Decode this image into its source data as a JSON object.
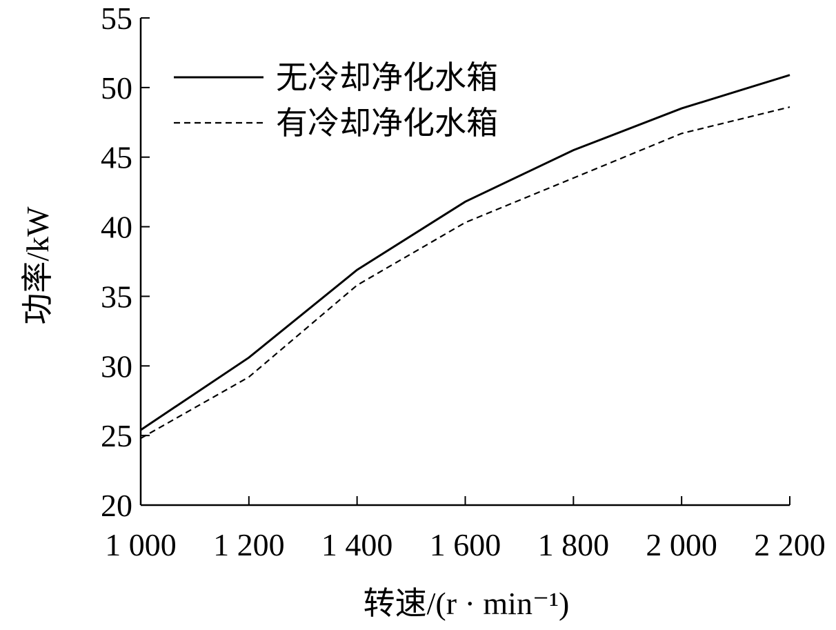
{
  "chart_data": {
    "type": "line",
    "xlabel": "转速/(r · min⁻¹)",
    "ylabel": "功率/kW",
    "x": [
      1000,
      1200,
      1400,
      1600,
      1800,
      2000,
      2200
    ],
    "xtick_labels": [
      "1 000",
      "1 200",
      "1 400",
      "1 600",
      "1 800",
      "2 000",
      "2 200"
    ],
    "yticks": [
      20,
      25,
      30,
      35,
      40,
      45,
      50,
      55
    ],
    "xlim": [
      1000,
      2200
    ],
    "ylim": [
      20,
      55
    ],
    "grid": false,
    "legend_position": "top-left",
    "series": [
      {
        "name": "无冷却净化水箱",
        "values": [
          25.4,
          30.6,
          36.9,
          41.8,
          45.5,
          48.5,
          50.9
        ],
        "style": "solid",
        "color": "#000000"
      },
      {
        "name": "有冷却净化水箱",
        "values": [
          24.8,
          29.2,
          35.8,
          40.3,
          43.5,
          46.7,
          48.6
        ],
        "style": "dashed",
        "color": "#000000"
      }
    ]
  }
}
